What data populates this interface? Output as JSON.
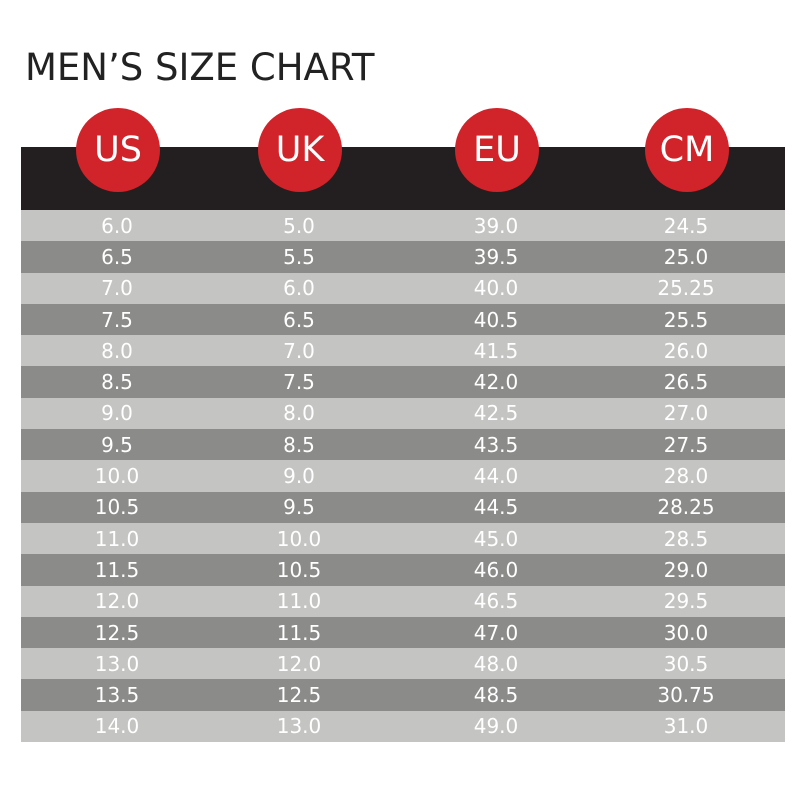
{
  "title": "MEN’S SIZE CHART",
  "headers": [
    "US",
    "UK",
    "EU",
    "CM"
  ],
  "colors": {
    "badge": "#d1232a",
    "header_band": "#231f20",
    "row_light": "#c4c4c2",
    "row_dark": "#8b8b89",
    "text": "#ffffff"
  },
  "rows": [
    [
      "6.0",
      "5.0",
      "39.0",
      "24.5"
    ],
    [
      "6.5",
      "5.5",
      "39.5",
      "25.0"
    ],
    [
      "7.0",
      "6.0",
      "40.0",
      "25.25"
    ],
    [
      "7.5",
      "6.5",
      "40.5",
      "25.5"
    ],
    [
      "8.0",
      "7.0",
      "41.5",
      "26.0"
    ],
    [
      "8.5",
      "7.5",
      "42.0",
      "26.5"
    ],
    [
      "9.0",
      "8.0",
      "42.5",
      "27.0"
    ],
    [
      "9.5",
      "8.5",
      "43.5",
      "27.5"
    ],
    [
      "10.0",
      "9.0",
      "44.0",
      "28.0"
    ],
    [
      "10.5",
      "9.5",
      "44.5",
      "28.25"
    ],
    [
      "11.0",
      "10.0",
      "45.0",
      "28.5"
    ],
    [
      "11.5",
      "10.5",
      "46.0",
      "29.0"
    ],
    [
      "12.0",
      "11.0",
      "46.5",
      "29.5"
    ],
    [
      "12.5",
      "11.5",
      "47.0",
      "30.0"
    ],
    [
      "13.0",
      "12.0",
      "48.0",
      "30.5"
    ],
    [
      "13.5",
      "12.5",
      "48.5",
      "30.75"
    ],
    [
      "14.0",
      "13.0",
      "49.0",
      "31.0"
    ]
  ]
}
